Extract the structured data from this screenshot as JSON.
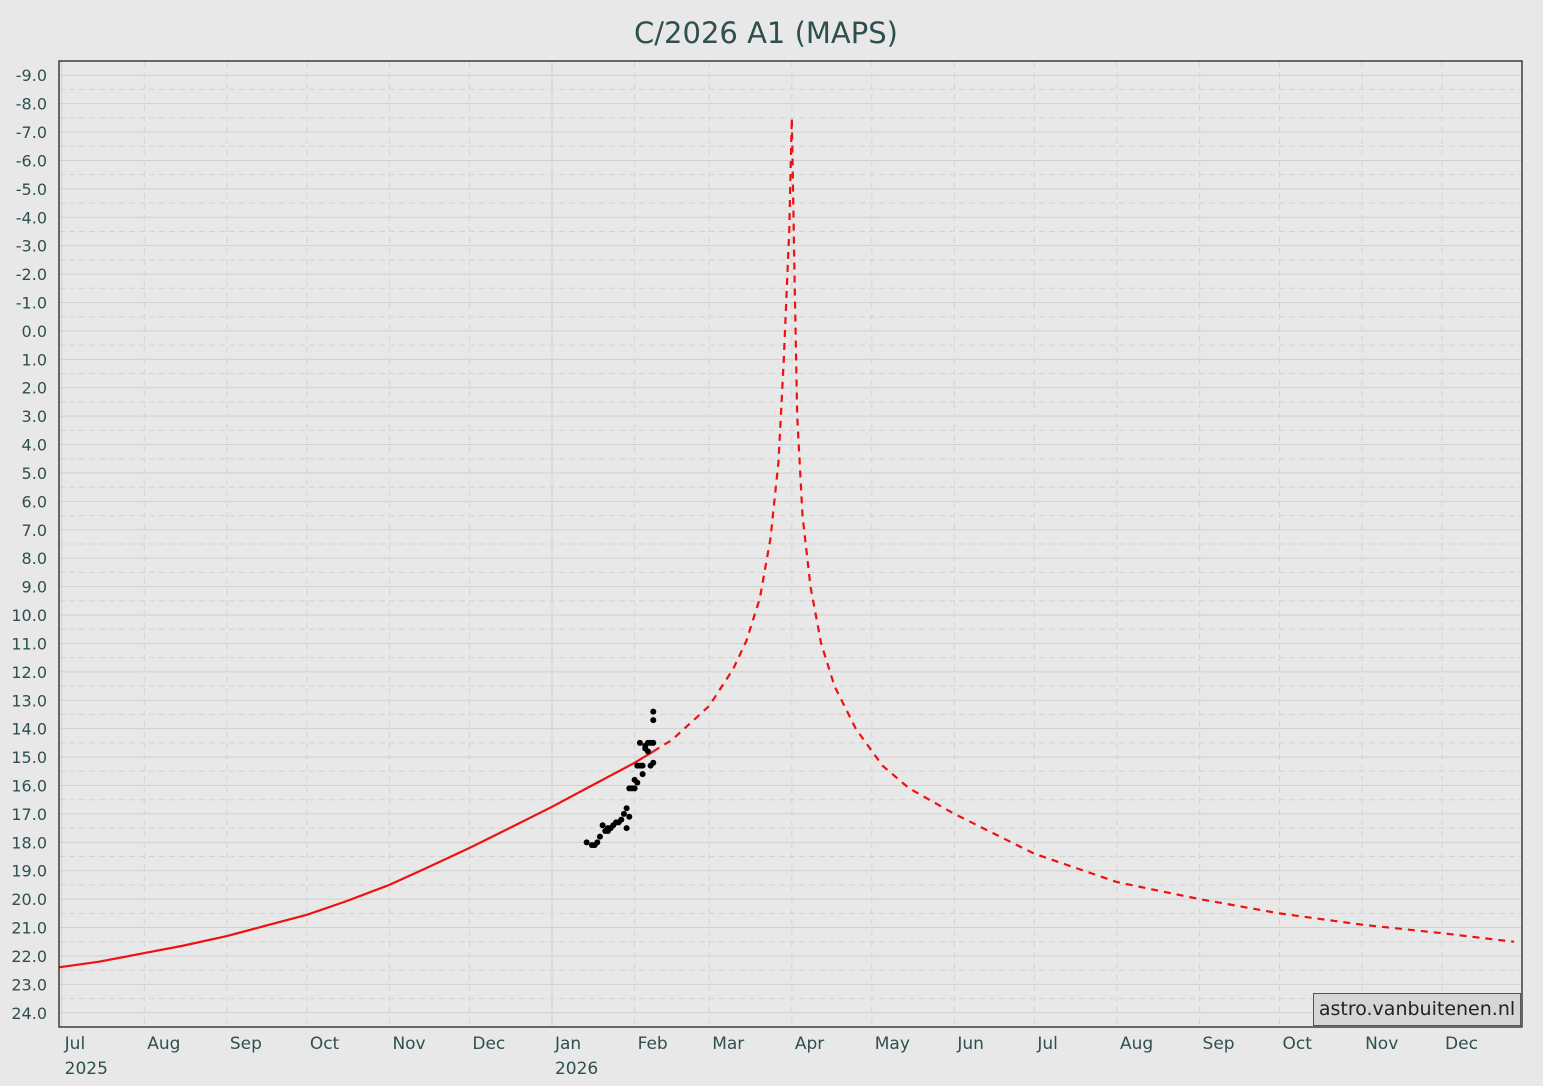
{
  "chart_data": {
    "type": "line",
    "title": "C/2026 A1 (MAPS)",
    "xlabel": "",
    "ylabel": "",
    "x_range": [
      "2025-06-30",
      "2026-12-31"
    ],
    "ylim": [
      24.5,
      -9.5
    ],
    "y_inverted": true,
    "grid": true,
    "y_ticks": [
      "-9.0",
      "-8.0",
      "-7.0",
      "-6.0",
      "-5.0",
      "-4.0",
      "-3.0",
      "-2.0",
      "-1.0",
      "0.0",
      "1.0",
      "2.0",
      "3.0",
      "4.0",
      "5.0",
      "6.0",
      "7.0",
      "8.0",
      "9.0",
      "10.0",
      "11.0",
      "12.0",
      "13.0",
      "14.0",
      "15.0",
      "16.0",
      "17.0",
      "18.0",
      "19.0",
      "20.0",
      "21.0",
      "22.0",
      "23.0",
      "24.0"
    ],
    "x_ticks": [
      {
        "label": "Jul",
        "date": "2025-07-01",
        "year": "2025"
      },
      {
        "label": "Aug",
        "date": "2025-08-01"
      },
      {
        "label": "Sep",
        "date": "2025-09-01"
      },
      {
        "label": "Oct",
        "date": "2025-10-01"
      },
      {
        "label": "Nov",
        "date": "2025-11-01"
      },
      {
        "label": "Dec",
        "date": "2025-12-01"
      },
      {
        "label": "Jan",
        "date": "2026-01-01",
        "year": "2026"
      },
      {
        "label": "Feb",
        "date": "2026-02-01"
      },
      {
        "label": "Mar",
        "date": "2026-03-01"
      },
      {
        "label": "Apr",
        "date": "2026-04-01"
      },
      {
        "label": "May",
        "date": "2026-05-01"
      },
      {
        "label": "Jun",
        "date": "2026-06-01"
      },
      {
        "label": "Jul",
        "date": "2026-07-01"
      },
      {
        "label": "Aug",
        "date": "2026-08-01"
      },
      {
        "label": "Sep",
        "date": "2026-09-01"
      },
      {
        "label": "Oct",
        "date": "2026-10-01"
      },
      {
        "label": "Nov",
        "date": "2026-11-01"
      },
      {
        "label": "Dec",
        "date": "2026-12-01"
      }
    ],
    "series": [
      {
        "type": "line",
        "style": "solid",
        "color": "#ee1111",
        "x": [
          "2025-06-30",
          "2025-07-15",
          "2025-08-01",
          "2025-08-15",
          "2025-09-01",
          "2025-09-15",
          "2025-10-01",
          "2025-10-15",
          "2025-11-01",
          "2025-11-15",
          "2025-12-01",
          "2025-12-15",
          "2026-01-01",
          "2026-01-15",
          "2026-02-01",
          "2026-02-08"
        ],
        "y": [
          22.4,
          22.2,
          21.9,
          21.65,
          21.3,
          20.95,
          20.55,
          20.1,
          19.5,
          18.9,
          18.2,
          17.55,
          16.75,
          16.05,
          15.2,
          14.8
        ]
      },
      {
        "type": "line",
        "style": "dashed",
        "color": "#ee1111",
        "x": [
          "2026-02-08",
          "2026-02-15",
          "2026-03-01",
          "2026-03-10",
          "2026-03-15",
          "2026-03-20",
          "2026-03-24",
          "2026-03-27",
          "2026-03-29",
          "2026-03-31",
          "2026-04-01",
          "2026-04-02",
          "2026-04-03",
          "2026-04-05",
          "2026-04-08",
          "2026-04-12",
          "2026-04-17",
          "2026-04-25",
          "2026-05-05",
          "2026-05-15",
          "2026-06-01",
          "2026-07-01",
          "2026-08-01",
          "2026-09-01",
          "2026-10-01",
          "2026-11-01",
          "2026-12-01",
          "2026-12-28"
        ],
        "y": [
          14.8,
          14.4,
          13.2,
          11.9,
          10.9,
          9.4,
          7.3,
          4.6,
          1.0,
          -3.5,
          -7.5,
          -2.0,
          3.0,
          6.5,
          9.0,
          11.0,
          12.5,
          14.0,
          15.3,
          16.1,
          17.0,
          18.4,
          19.4,
          20.0,
          20.5,
          20.9,
          21.2,
          21.5
        ]
      },
      {
        "type": "scatter",
        "color": "#000000",
        "x": [
          "2026-01-14",
          "2026-01-16",
          "2026-01-17",
          "2026-01-18",
          "2026-01-19",
          "2026-01-20",
          "2026-01-21",
          "2026-01-22",
          "2026-01-22",
          "2026-01-23",
          "2026-01-24",
          "2026-01-25",
          "2026-01-26",
          "2026-01-27",
          "2026-01-28",
          "2026-01-29",
          "2026-01-29",
          "2026-01-30",
          "2026-01-30",
          "2026-01-31",
          "2026-02-01",
          "2026-02-01",
          "2026-02-02",
          "2026-02-02",
          "2026-02-03",
          "2026-02-03",
          "2026-02-04",
          "2026-02-04",
          "2026-02-05",
          "2026-02-05",
          "2026-02-06",
          "2026-02-06",
          "2026-02-07",
          "2026-02-07",
          "2026-02-08",
          "2026-02-08",
          "2026-02-08",
          "2026-02-08"
        ],
        "y": [
          18.0,
          18.1,
          18.1,
          18.0,
          17.8,
          17.4,
          17.6,
          17.5,
          17.6,
          17.5,
          17.4,
          17.3,
          17.3,
          17.2,
          17.0,
          16.8,
          17.5,
          17.1,
          16.1,
          16.1,
          16.1,
          15.8,
          15.3,
          15.9,
          15.3,
          14.5,
          15.3,
          15.6,
          14.6,
          14.7,
          14.8,
          14.5,
          15.3,
          14.5,
          14.5,
          15.2,
          13.7,
          13.4
        ]
      }
    ]
  },
  "credit": "astro.vanbuitenen.nl"
}
